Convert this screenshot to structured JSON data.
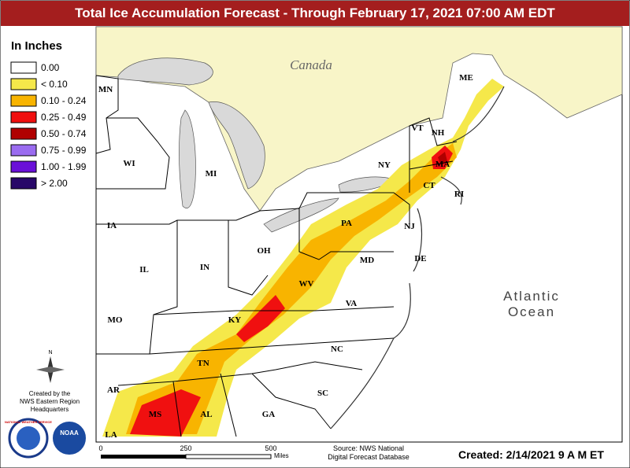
{
  "header": {
    "title": "Total Ice Accumulation Forecast - Through February 17, 2021 07:00 AM EDT"
  },
  "legend": {
    "title": "In Inches",
    "items": [
      {
        "label": "0.00",
        "color": "#ffffff"
      },
      {
        "label": "< 0.10",
        "color": "#f5e84a"
      },
      {
        "label": "0.10 - 0.24",
        "color": "#f8b400"
      },
      {
        "label": "0.25 - 0.49",
        "color": "#f01010"
      },
      {
        "label": "0.50 - 0.74",
        "color": "#b00000"
      },
      {
        "label": "0.75 - 0.99",
        "color": "#9a6cf0"
      },
      {
        "label": "1.00 - 1.99",
        "color": "#6a10d8"
      },
      {
        "label": "> 2.00",
        "color": "#280868"
      }
    ]
  },
  "map": {
    "canada": "Canada",
    "ocean": [
      "Atlantic",
      "Ocean"
    ],
    "states": [
      "ME",
      "MN",
      "VT",
      "NH",
      "WI",
      "MI",
      "NY",
      "MA",
      "CT",
      "RI",
      "IA",
      "PA",
      "NJ",
      "OH",
      "IL",
      "IN",
      "MD",
      "DE",
      "WV",
      "MO",
      "VA",
      "KY",
      "NC",
      "TN",
      "AR",
      "SC",
      "MS",
      "AL",
      "GA",
      "LA"
    ]
  },
  "compass": "N",
  "credits": [
    "Created by the",
    "NWS Eastern Region",
    "Headquarters"
  ],
  "logos": [
    "NATIONAL WEATHER SERVICE",
    "NOAA"
  ],
  "scale": {
    "ticks": [
      "0",
      "250",
      "500"
    ],
    "unit": "Miles"
  },
  "footer": {
    "source": [
      "Source: NWS National",
      "Digital Forecast Database"
    ],
    "created": "Created: 2/14/2021 9 A M ET"
  }
}
